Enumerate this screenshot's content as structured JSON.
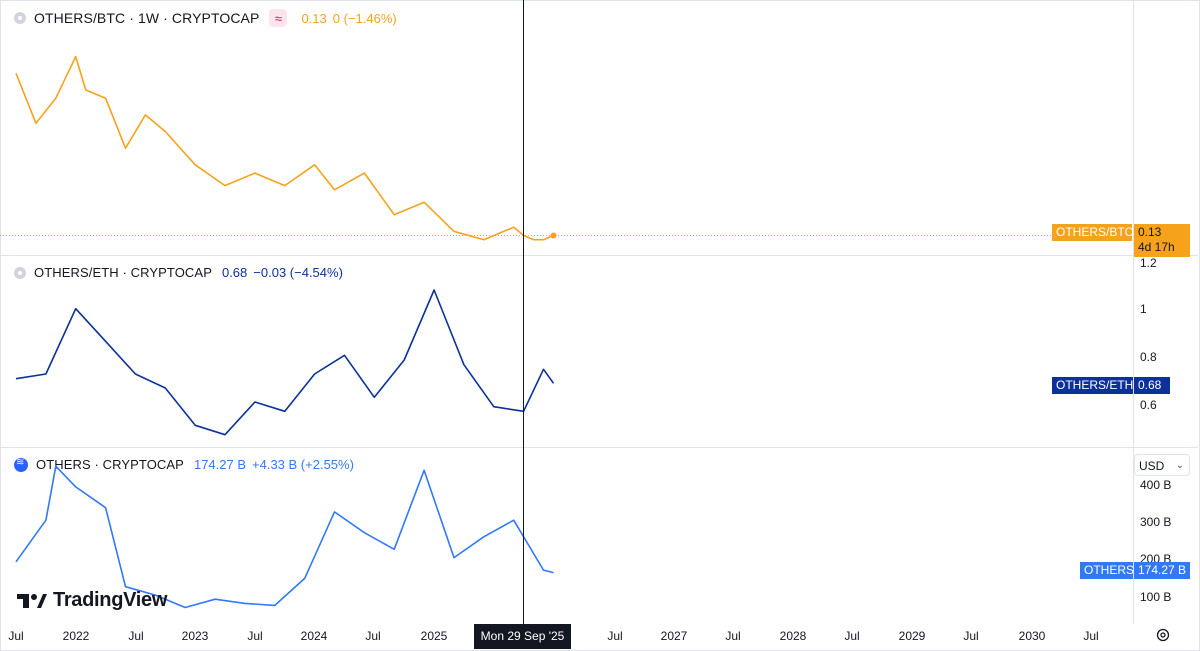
{
  "panes": {
    "btc": {
      "legend": {
        "symbol": "OTHERS/BTC · 1W · CRYPTOCAP",
        "value": "0.13",
        "change": "0 (−1.46%)"
      },
      "tag": {
        "label": "OTHERS/BTC",
        "value": "0.13",
        "countdown": "4d 17h"
      },
      "color": "#f7a21b"
    },
    "eth": {
      "legend": {
        "symbol": "OTHERS/ETH · CRYPTOCAP",
        "value": "0.68",
        "change": "−0.03 (−4.54%)"
      },
      "tag": {
        "label": "OTHERS/ETH",
        "value": "0.68"
      },
      "scale": [
        "1.2",
        "1",
        "0.8",
        "0.6"
      ],
      "color": "#0c3299"
    },
    "others": {
      "legend": {
        "symbol": "OTHERS · CRYPTOCAP",
        "value": "174.27 B",
        "change": "+4.33 B (+2.55%)"
      },
      "tag": {
        "label": "OTHERS",
        "value": "174.27 B"
      },
      "scale": [
        "400 B",
        "300 B",
        "200 B",
        "100 B"
      ],
      "currency": "USD",
      "color": "#3179f5"
    }
  },
  "time_axis": [
    "Jul",
    "2022",
    "Jul",
    "2023",
    "Jul",
    "2024",
    "Jul",
    "2025",
    "Jul",
    "2027",
    "Jul",
    "2028",
    "Jul",
    "2029",
    "Jul",
    "2030",
    "Jul"
  ],
  "crosshair_label": "Mon 29 Sep '25",
  "branding": "TradingView",
  "icons": [
    "symbol-dot-icon",
    "approx-icon",
    "others-logo-icon",
    "settings-icon",
    "chevron-down-icon",
    "tradingview-logo-icon"
  ],
  "chart_data": [
    {
      "type": "line",
      "title": "OTHERS/BTC · 1W · CRYPTOCAP",
      "series": [
        {
          "name": "OTHERS/BTC",
          "x": [
            "2021-07",
            "2021-09",
            "2021-11",
            "2022-01",
            "2022-02",
            "2022-04",
            "2022-06",
            "2022-08",
            "2022-10",
            "2023-01",
            "2023-04",
            "2023-07",
            "2023-10",
            "2024-01",
            "2024-03",
            "2024-06",
            "2024-09",
            "2024-12",
            "2025-03",
            "2025-06",
            "2025-09",
            "2025-10",
            "2025-11",
            "2025-12",
            "2026-01"
          ],
          "values": [
            0.52,
            0.4,
            0.46,
            0.56,
            0.48,
            0.46,
            0.34,
            0.42,
            0.38,
            0.3,
            0.25,
            0.28,
            0.25,
            0.3,
            0.24,
            0.28,
            0.18,
            0.21,
            0.14,
            0.12,
            0.15,
            0.13,
            0.12,
            0.12,
            0.13
          ]
        }
      ]
    },
    {
      "type": "line",
      "title": "OTHERS/ETH · CRYPTOCAP",
      "ylim": [
        0.42,
        1.2
      ],
      "series": [
        {
          "name": "OTHERS/ETH",
          "x": [
            "2021-07",
            "2021-10",
            "2022-01",
            "2022-04",
            "2022-07",
            "2022-10",
            "2023-01",
            "2023-04",
            "2023-07",
            "2023-10",
            "2024-01",
            "2024-04",
            "2024-07",
            "2024-10",
            "2025-01",
            "2025-04",
            "2025-07",
            "2025-10",
            "2025-12",
            "2026-01"
          ],
          "values": [
            0.7,
            0.72,
            1.0,
            0.86,
            0.72,
            0.66,
            0.5,
            0.46,
            0.6,
            0.56,
            0.72,
            0.8,
            0.62,
            0.78,
            1.08,
            0.76,
            0.58,
            0.56,
            0.74,
            0.68
          ]
        }
      ]
    },
    {
      "type": "line",
      "title": "OTHERS · CRYPTOCAP",
      "ylim": [
        60,
        440
      ],
      "series": [
        {
          "name": "OTHERS",
          "x": [
            "2021-07",
            "2021-10",
            "2021-11",
            "2022-01",
            "2022-04",
            "2022-06",
            "2022-09",
            "2022-12",
            "2023-03",
            "2023-06",
            "2023-09",
            "2023-12",
            "2024-03",
            "2024-06",
            "2024-09",
            "2024-12",
            "2025-03",
            "2025-06",
            "2025-09",
            "2025-12",
            "2026-01"
          ],
          "values": [
            200,
            300,
            430,
            380,
            330,
            140,
            120,
            90,
            110,
            100,
            95,
            160,
            320,
            270,
            230,
            420,
            210,
            260,
            300,
            180,
            174
          ]
        }
      ]
    }
  ]
}
